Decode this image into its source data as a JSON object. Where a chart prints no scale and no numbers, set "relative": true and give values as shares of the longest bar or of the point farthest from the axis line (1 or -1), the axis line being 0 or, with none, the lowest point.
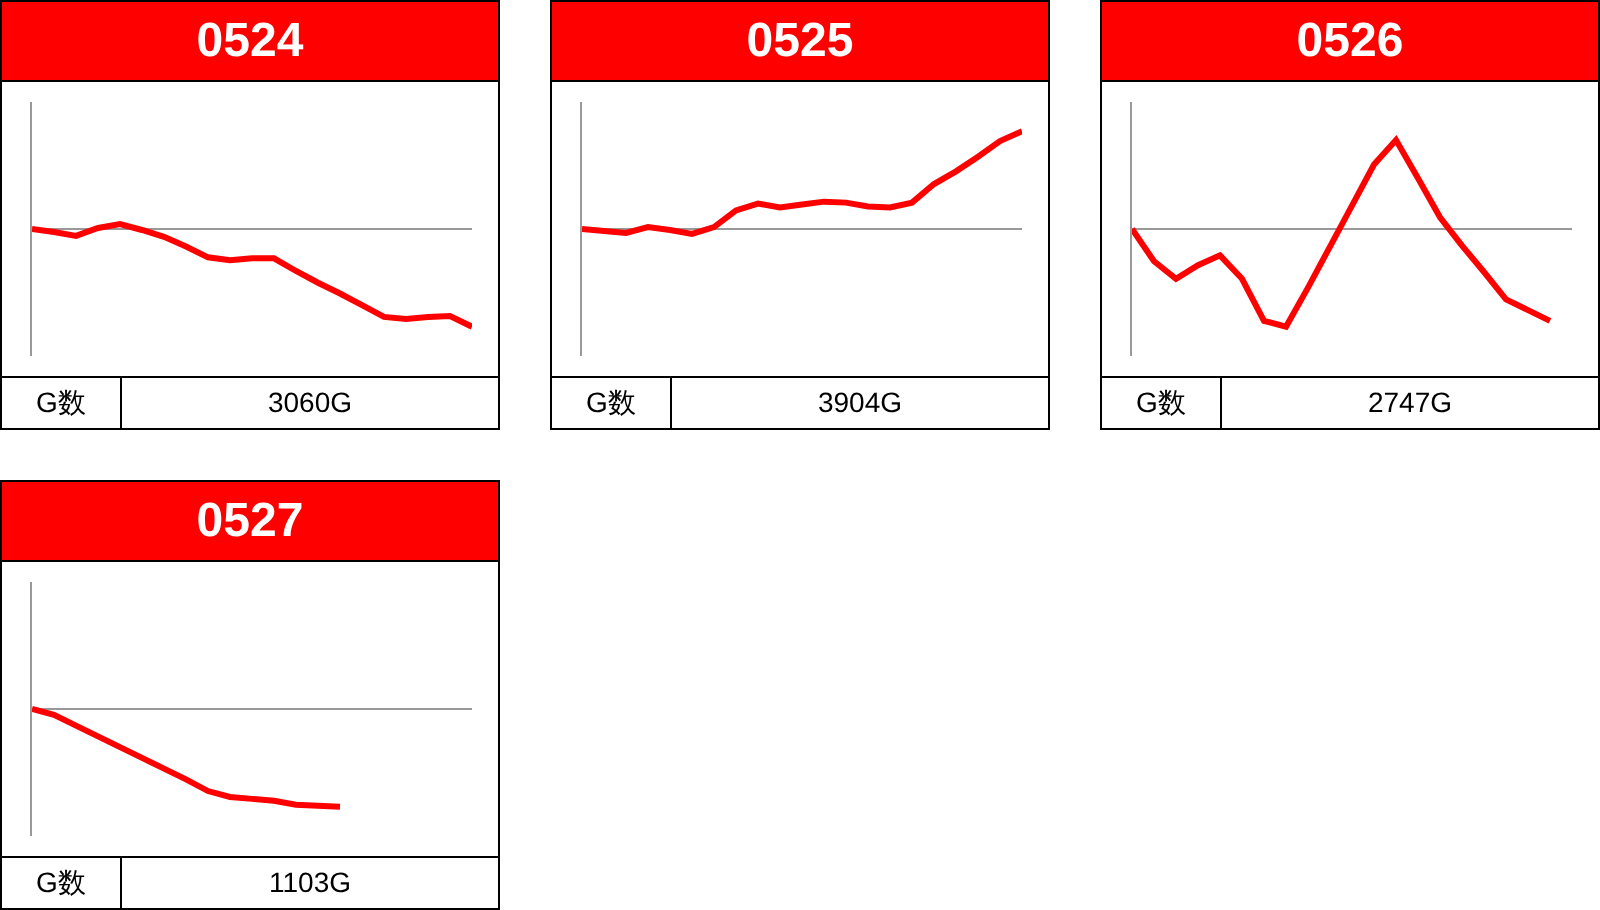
{
  "chart_data": [
    {
      "type": "line",
      "title": "0524",
      "relative": true,
      "annotations": [
        "G数",
        "3060G"
      ],
      "categories": [
        null,
        null,
        null,
        null,
        null,
        null,
        null,
        null,
        null,
        null,
        null,
        null,
        null,
        null,
        null,
        null,
        null,
        null,
        null,
        null,
        null
      ],
      "series": [
        {
          "color": "#ff0000",
          "values": [
            0,
            -0.03,
            -0.07,
            0.01,
            0.05,
            -0.01,
            -0.08,
            -0.18,
            -0.29,
            -0.32,
            -0.3,
            -0.3,
            -0.43,
            -0.55,
            -0.66,
            -0.78,
            -0.9,
            -0.92,
            -0.9,
            -0.89,
            -1
          ]
        }
      ]
    },
    {
      "type": "line",
      "title": "0525",
      "relative": true,
      "annotations": [
        "G数",
        "3904G"
      ],
      "categories": [
        null,
        null,
        null,
        null,
        null,
        null,
        null,
        null,
        null,
        null,
        null,
        null,
        null,
        null,
        null,
        null,
        null,
        null,
        null,
        null,
        null
      ],
      "series": [
        {
          "color": "#ff0000",
          "values": [
            0,
            -0.02,
            -0.04,
            0.02,
            -0.01,
            -0.05,
            0.02,
            0.19,
            0.26,
            0.22,
            0.25,
            0.28,
            0.27,
            0.23,
            0.22,
            0.27,
            0.46,
            0.59,
            0.74,
            0.9,
            1
          ]
        }
      ]
    },
    {
      "type": "line",
      "title": "0526",
      "relative": true,
      "annotations": [
        "G数",
        "2747G"
      ],
      "categories": [
        null,
        null,
        null,
        null,
        null,
        null,
        null,
        null,
        null,
        null,
        null,
        null,
        null,
        null,
        null,
        null,
        null,
        null,
        null,
        null,
        null
      ],
      "series": [
        {
          "color": "#ff0000",
          "values": [
            0,
            -0.33,
            -0.51,
            -0.37,
            -0.27,
            -0.51,
            -0.94,
            -1,
            -0.6,
            -0.18,
            0.24,
            0.66,
            0.91,
            0.52,
            0.12,
            -0.17,
            -0.44,
            -0.72,
            -0.83,
            -0.94,
            null
          ]
        }
      ]
    },
    {
      "type": "line",
      "title": "0527",
      "relative": true,
      "annotations": [
        "G数",
        "1103G"
      ],
      "categories": [
        null,
        null,
        null,
        null,
        null,
        null,
        null,
        null,
        null,
        null,
        null,
        null,
        null,
        null,
        null,
        null,
        null,
        null,
        null,
        null,
        null
      ],
      "series": [
        {
          "color": "#ff0000",
          "values": [
            0,
            -0.06,
            -0.17,
            -0.28,
            -0.39,
            -0.5,
            -0.61,
            -0.72,
            -0.84,
            -0.9,
            -0.92,
            -0.94,
            -0.98,
            -0.99,
            -1,
            null,
            null,
            null,
            null,
            null,
            null
          ]
        }
      ]
    }
  ]
}
